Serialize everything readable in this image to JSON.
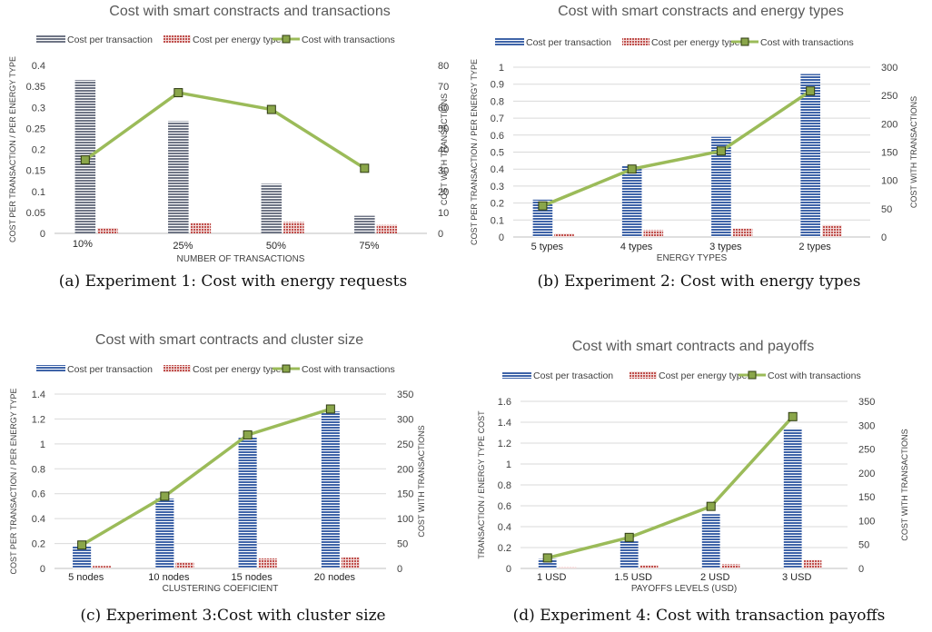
{
  "colors": {
    "transaction_bar": "#3f64a8",
    "transaction_bar_exp1": "#6f7585",
    "energy_bar": "#c0504d",
    "line": "#9bbb59",
    "marker_fill": "#8aa64a",
    "title": "#595959",
    "axis_text": "#404040",
    "grid": "#d9d9d9"
  },
  "panels": [
    {
      "caption": "(a) Experiment 1: Cost with energy requests",
      "chart_data": {
        "type": "bar",
        "title": "Cost with smart constracts and transactions",
        "categories": [
          "10%",
          "25%",
          "50%",
          "75%"
        ],
        "series": [
          {
            "name": "Cost per transaction",
            "kind": "bar",
            "axis": "left",
            "values": [
              0.365,
              0.267,
              0.118,
              0.042
            ]
          },
          {
            "name": "Cost per energy type",
            "kind": "bar",
            "axis": "left",
            "values": [
              0.013,
              0.025,
              0.027,
              0.02
            ]
          },
          {
            "name": "Cost with transactions",
            "kind": "line",
            "axis": "right",
            "values": [
              35,
              67,
              59,
              31
            ]
          }
        ],
        "xlabel": "NUMBER OF TRANSACTIONS",
        "ylabel": "COST PER TRANSACTION / PER ENERGY TYPE",
        "y2label": "COST WITH TRANSACTIONS",
        "ylim": [
          0,
          0.4
        ],
        "yticks": [
          "0",
          "0.05",
          "0.1",
          "0.15",
          "0.2",
          "0.25",
          "0.3",
          "0.35",
          "0.4"
        ],
        "y2lim": [
          0,
          80
        ],
        "y2ticks": [
          "0",
          "10",
          "20",
          "30",
          "40",
          "50",
          "60",
          "70",
          "80"
        ],
        "grid": false,
        "legend": "top"
      }
    },
    {
      "caption": "(b) Experiment 2: Cost with energy types",
      "chart_data": {
        "type": "bar",
        "title": "Cost with smart constracts and energy types",
        "categories": [
          "5 types",
          "4 types",
          "3 types",
          "2 types"
        ],
        "series": [
          {
            "name": "Cost per transaction",
            "kind": "bar",
            "axis": "left",
            "values": [
              0.22,
              0.42,
              0.59,
              0.96
            ]
          },
          {
            "name": "Cost per energy type",
            "kind": "bar",
            "axis": "left",
            "values": [
              0.02,
              0.04,
              0.05,
              0.07
            ]
          },
          {
            "name": "Cost with transactions",
            "kind": "line",
            "axis": "right",
            "values": [
              55,
              120,
              152,
              258
            ]
          }
        ],
        "xlabel": "ENERGY TYPES",
        "ylabel": "COST PER TRANSACTION / PER ENERGY TYPE",
        "y2label": "COST WITH TRANSACTIONS",
        "ylim": [
          0,
          1
        ],
        "yticks": [
          "0",
          "0.1",
          "0.2",
          "0.3",
          "0.4",
          "0.5",
          "0.6",
          "0.7",
          "0.8",
          "0.9",
          "1"
        ],
        "y2lim": [
          0,
          300
        ],
        "y2ticks": [
          "0",
          "50",
          "100",
          "150",
          "200",
          "250",
          "300"
        ],
        "grid": true,
        "legend": "top"
      }
    },
    {
      "caption": "(c) Experiment 3:Cost with cluster size",
      "chart_data": {
        "type": "bar",
        "title": "Cost with smart contracts and cluster size",
        "categories": [
          "5 nodes",
          "10 nodes",
          "15 nodes",
          "20 nodes"
        ],
        "series": [
          {
            "name": "Cost per transaction",
            "kind": "bar",
            "axis": "left",
            "values": [
              0.18,
              0.56,
              1.05,
              1.26
            ]
          },
          {
            "name": "Cost per energy type",
            "kind": "bar",
            "axis": "left",
            "values": [
              0.02,
              0.05,
              0.08,
              0.09
            ]
          },
          {
            "name": "Cost with transactions",
            "kind": "line",
            "axis": "right",
            "values": [
              47,
              145,
              268,
              320
            ]
          }
        ],
        "xlabel": "CLUSTERING COEFICIENT",
        "ylabel": "COST PER TRANSACTION / PER ENERGY TYPE",
        "y2label": "COST WITH TRANSACTIONS",
        "ylim": [
          0,
          1.4
        ],
        "yticks": [
          "0",
          "0.2",
          "0.4",
          "0.6",
          "0.8",
          "1",
          "1.2",
          "1.4"
        ],
        "y2lim": [
          0,
          350
        ],
        "y2ticks": [
          "0",
          "50",
          "100",
          "150",
          "200",
          "250",
          "300",
          "350"
        ],
        "grid": true,
        "legend": "top"
      }
    },
    {
      "caption": "(d) Experiment 4: Cost with transaction payoffs",
      "chart_data": {
        "type": "bar",
        "title": "Cost with smart contracts and payoffs",
        "categories": [
          "1 USD",
          "1.5 USD",
          "2 USD",
          "3 USD"
        ],
        "series": [
          {
            "name": "Cost per trasaction",
            "kind": "bar",
            "axis": "left",
            "values": [
              0.09,
              0.26,
              0.52,
              1.34
            ]
          },
          {
            "name": "Cost per energy type",
            "kind": "bar",
            "axis": "left",
            "values": [
              0.01,
              0.03,
              0.04,
              0.08
            ]
          },
          {
            "name": "Cost with transactions",
            "kind": "line",
            "axis": "right",
            "values": [
              22,
              65,
              130,
              318
            ]
          }
        ],
        "xlabel": "PAYOFFS LEVELS (USD)",
        "ylabel": "TRANSACTION / ENERGY TYPE  COST",
        "y2label": "COST WITH TRANSACTIONS",
        "ylim": [
          0,
          1.6
        ],
        "yticks": [
          "0",
          "0.2",
          "0.4",
          "0.6",
          "0.8",
          "1",
          "1.2",
          "1.4",
          "1.6"
        ],
        "y2lim": [
          0,
          350
        ],
        "y2ticks": [
          "0",
          "50",
          "100",
          "150",
          "200",
          "250",
          "300",
          "350"
        ],
        "grid": true,
        "legend": "top"
      }
    }
  ]
}
